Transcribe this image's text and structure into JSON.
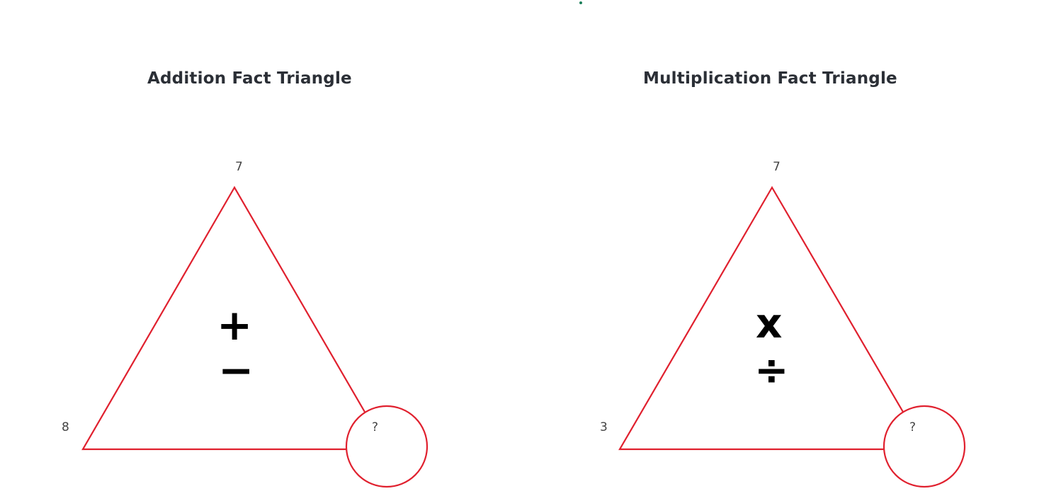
{
  "triangles": [
    {
      "title": "Addition Fact Triangle",
      "top": "7",
      "bottom_left": "8",
      "bottom_right": "?",
      "op_top": "+",
      "op_bottom": "−"
    },
    {
      "title": "Multiplication Fact Triangle",
      "top": "7",
      "bottom_left": "3",
      "bottom_right": "?",
      "op_top": "x",
      "op_bottom": "÷"
    }
  ],
  "colors": {
    "triangle_stroke": "#e0202e",
    "title_text": "#2b2f36",
    "number_text": "#444444",
    "operator": "#000000"
  }
}
